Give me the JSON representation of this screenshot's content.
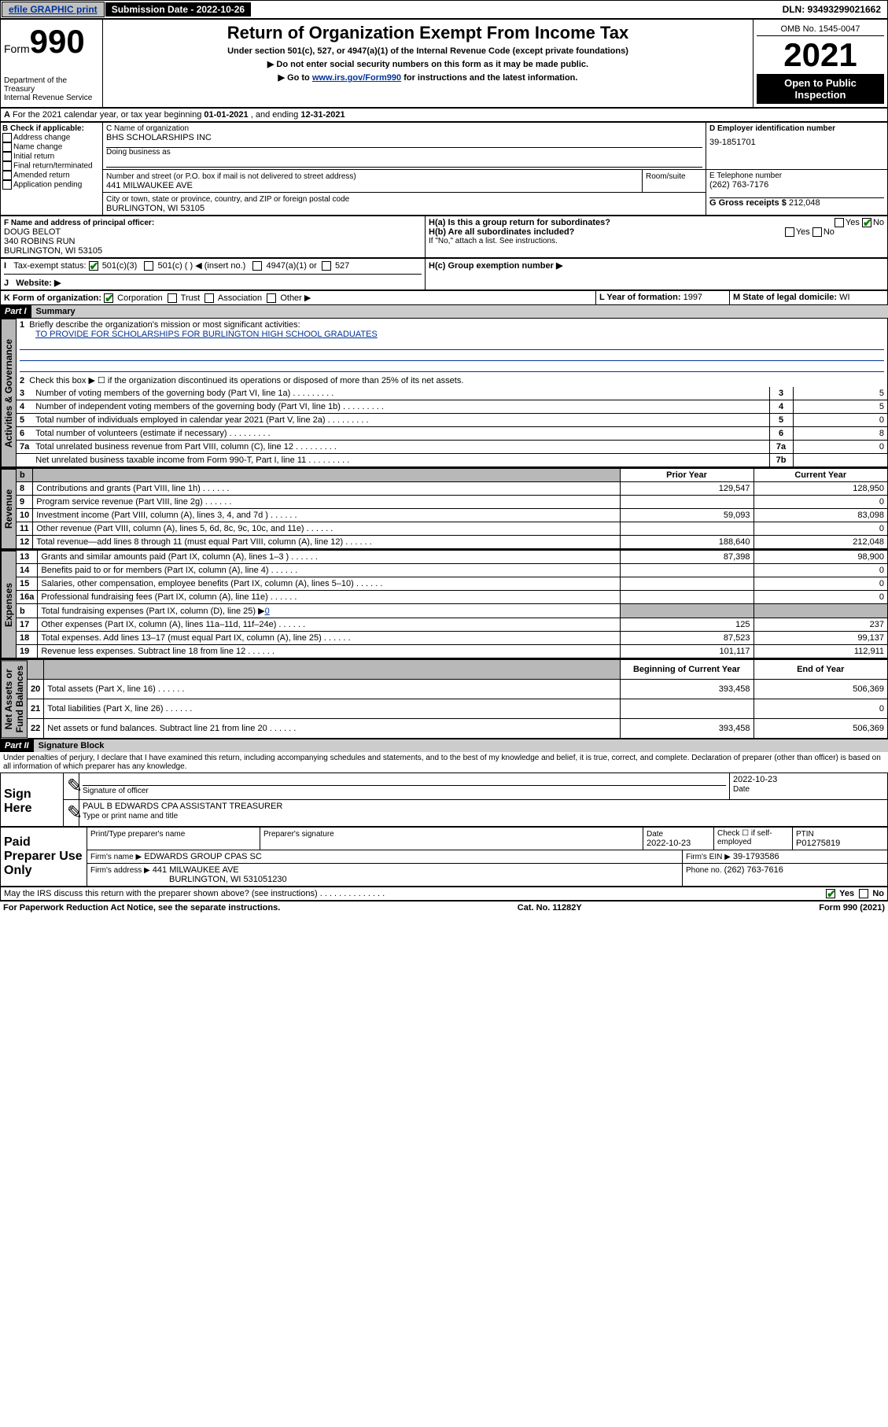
{
  "topbar": {
    "efile": "efile GRAPHIC print",
    "sub_lbl": "Submission Date - 2022-10-26",
    "dln_lbl": "DLN: 93493299021662"
  },
  "header": {
    "form": "Form",
    "num": "990",
    "dept": "Department of the Treasury\nInternal Revenue Service",
    "title": "Return of Organization Exempt From Income Tax",
    "sub1": "Under section 501(c), 527, or 4947(a)(1) of the Internal Revenue Code (except private foundations)",
    "sub2": "▶ Do not enter social security numbers on this form as it may be made public.",
    "sub3_pre": "▶ Go to ",
    "sub3_link": "www.irs.gov/Form990",
    "sub3_post": " for instructions and the latest information.",
    "omb": "OMB No. 1545-0047",
    "year": "2021",
    "open": "Open to Public\nInspection"
  },
  "A": {
    "text": "For the 2021 calendar year, or tax year beginning ",
    "d1": "01-01-2021",
    "mid": " , and ending ",
    "d2": "12-31-2021"
  },
  "B": {
    "hdr": "B Check if applicable:",
    "items": [
      "Address change",
      "Name change",
      "Initial return",
      "Final return/terminated",
      "Amended return",
      "Application pending"
    ]
  },
  "C": {
    "lbl": "C Name of organization",
    "name": "BHS SCHOLARSHIPS INC",
    "dba": "Doing business as",
    "addr_lbl": "Number and street (or P.O. box if mail is not delivered to street address)",
    "room": "Room/suite",
    "addr": "441 MILWAUKEE AVE",
    "city_lbl": "City or town, state or province, country, and ZIP or foreign postal code",
    "city": "BURLINGTON, WI  53105"
  },
  "D": {
    "lbl": "D Employer identification number",
    "val": "39-1851701"
  },
  "E": {
    "lbl": "E Telephone number",
    "val": "(262) 763-7176"
  },
  "G": {
    "lbl": "G Gross receipts $",
    "val": "212,048"
  },
  "F": {
    "lbl": "F Name and address of principal officer:",
    "name": "DOUG BELOT",
    "addr": "340 ROBINS RUN",
    "city": "BURLINGTON, WI  53105"
  },
  "H": {
    "a": "H(a)  Is this a group return for subordinates?",
    "b": "H(b)  Are all subordinates included?",
    "note": "If \"No,\" attach a list. See instructions.",
    "c": "H(c)  Group exemption number ▶",
    "yes": "Yes",
    "no": "No"
  },
  "I": {
    "lbl": "Tax-exempt status:",
    "o1": "501(c)(3)",
    "o2": "501(c) (   ) ◀ (insert no.)",
    "o3": "4947(a)(1) or",
    "o4": "527"
  },
  "J": {
    "lbl": "Website: ▶"
  },
  "K": {
    "lbl": "K Form of organization:",
    "o1": "Corporation",
    "o2": "Trust",
    "o3": "Association",
    "o4": "Other ▶"
  },
  "L": {
    "lbl": "L Year of formation:",
    "val": "1997"
  },
  "M": {
    "lbl": "M State of legal domicile:",
    "val": "WI"
  },
  "parts": {
    "p1": "Part I",
    "p1t": "Summary",
    "p2": "Part II",
    "p2t": "Signature Block"
  },
  "tabs": {
    "ag": "Activities & Governance",
    "rev": "Revenue",
    "exp": "Expenses",
    "na": "Net Assets or\nFund Balances"
  },
  "summary": {
    "l1_lbl": "Briefly describe the organization's mission or most significant activities:",
    "l1_val": "TO PROVIDE FOR SCHOLARSHIPS FOR BURLINGTON HIGH SCHOOL GRADUATES",
    "l2": "Check this box ▶ ☐  if the organization discontinued its operations or disposed of more than 25% of its net assets.",
    "rows_gov": [
      {
        "n": "3",
        "t": "Number of voting members of the governing body (Part VI, line 1a)",
        "rn": "3",
        "v": "5"
      },
      {
        "n": "4",
        "t": "Number of independent voting members of the governing body (Part VI, line 1b)",
        "rn": "4",
        "v": "5"
      },
      {
        "n": "5",
        "t": "Total number of individuals employed in calendar year 2021 (Part V, line 2a)",
        "rn": "5",
        "v": "0"
      },
      {
        "n": "6",
        "t": "Total number of volunteers (estimate if necessary)",
        "rn": "6",
        "v": "8"
      },
      {
        "n": "7a",
        "t": "Total unrelated business revenue from Part VIII, column (C), line 12",
        "rn": "7a",
        "v": "0"
      },
      {
        "n": "",
        "t": "Net unrelated business taxable income from Form 990-T, Part I, line 11",
        "rn": "7b",
        "v": ""
      }
    ],
    "hdr_prior": "Prior Year",
    "hdr_curr": "Current Year",
    "rows_rev": [
      {
        "n": "8",
        "t": "Contributions and grants (Part VIII, line 1h)",
        "p": "129,547",
        "c": "128,950"
      },
      {
        "n": "9",
        "t": "Program service revenue (Part VIII, line 2g)",
        "p": "",
        "c": "0"
      },
      {
        "n": "10",
        "t": "Investment income (Part VIII, column (A), lines 3, 4, and 7d )",
        "p": "59,093",
        "c": "83,098"
      },
      {
        "n": "11",
        "t": "Other revenue (Part VIII, column (A), lines 5, 6d, 8c, 9c, 10c, and 11e)",
        "p": "",
        "c": "0"
      },
      {
        "n": "12",
        "t": "Total revenue—add lines 8 through 11 (must equal Part VIII, column (A), line 12)",
        "p": "188,640",
        "c": "212,048"
      }
    ],
    "rows_exp": [
      {
        "n": "13",
        "t": "Grants and similar amounts paid (Part IX, column (A), lines 1–3 )",
        "p": "87,398",
        "c": "98,900"
      },
      {
        "n": "14",
        "t": "Benefits paid to or for members (Part IX, column (A), line 4)",
        "p": "",
        "c": "0"
      },
      {
        "n": "15",
        "t": "Salaries, other compensation, employee benefits (Part IX, column (A), lines 5–10)",
        "p": "",
        "c": "0"
      },
      {
        "n": "16a",
        "t": "Professional fundraising fees (Part IX, column (A), line 11e)",
        "p": "",
        "c": "0"
      }
    ],
    "l16b_pre": "Total fundraising expenses (Part IX, column (D), line 25) ▶",
    "l16b_val": "0",
    "rows_exp2": [
      {
        "n": "17",
        "t": "Other expenses (Part IX, column (A), lines 11a–11d, 11f–24e)",
        "p": "125",
        "c": "237"
      },
      {
        "n": "18",
        "t": "Total expenses. Add lines 13–17 (must equal Part IX, column (A), line 25)",
        "p": "87,523",
        "c": "99,137"
      },
      {
        "n": "19",
        "t": "Revenue less expenses. Subtract line 18 from line 12",
        "p": "101,117",
        "c": "112,911"
      }
    ],
    "hdr_beg": "Beginning of Current Year",
    "hdr_end": "End of Year",
    "rows_na": [
      {
        "n": "20",
        "t": "Total assets (Part X, line 16)",
        "p": "393,458",
        "c": "506,369"
      },
      {
        "n": "21",
        "t": "Total liabilities (Part X, line 26)",
        "p": "",
        "c": "0"
      },
      {
        "n": "22",
        "t": "Net assets or fund balances. Subtract line 21 from line 20",
        "p": "393,458",
        "c": "506,369"
      }
    ]
  },
  "sig": {
    "decl": "Under penalties of perjury, I declare that I have examined this return, including accompanying schedules and statements, and to the best of my knowledge and belief, it is true, correct, and complete. Declaration of preparer (other than officer) is based on all information of which preparer has any knowledge.",
    "sign_here": "Sign Here",
    "sig_off": "Signature of officer",
    "date": "Date",
    "date_val": "2022-10-23",
    "name": "PAUL B EDWARDS CPA  ASSISTANT TREASURER",
    "name_lbl": "Type or print name and title",
    "paid": "Paid Preparer Use Only",
    "p_name_lbl": "Print/Type preparer's name",
    "p_sig_lbl": "Preparer's signature",
    "p_date_lbl": "Date",
    "p_date": "2022-10-23",
    "p_check": "Check ☐ if self-employed",
    "p_ptin_lbl": "PTIN",
    "p_ptin": "P01275819",
    "firm_lbl": "Firm's name      ▶",
    "firm": "EDWARDS GROUP CPAS SC",
    "firm_ein_lbl": "Firm's EIN ▶",
    "firm_ein": "39-1793586",
    "firm_addr_lbl": "Firm's address ▶",
    "firm_addr": "441 MILWAUKEE AVE",
    "firm_city": "BURLINGTON, WI  531051230",
    "phone_lbl": "Phone no.",
    "phone": "(262) 763-7616",
    "may": "May the IRS discuss this return with the preparer shown above? (see instructions)",
    "yes": "Yes",
    "no": "No"
  },
  "footer": {
    "l": "For Paperwork Reduction Act Notice, see the separate instructions.",
    "c": "Cat. No. 11282Y",
    "r": "Form 990 (2021)"
  }
}
